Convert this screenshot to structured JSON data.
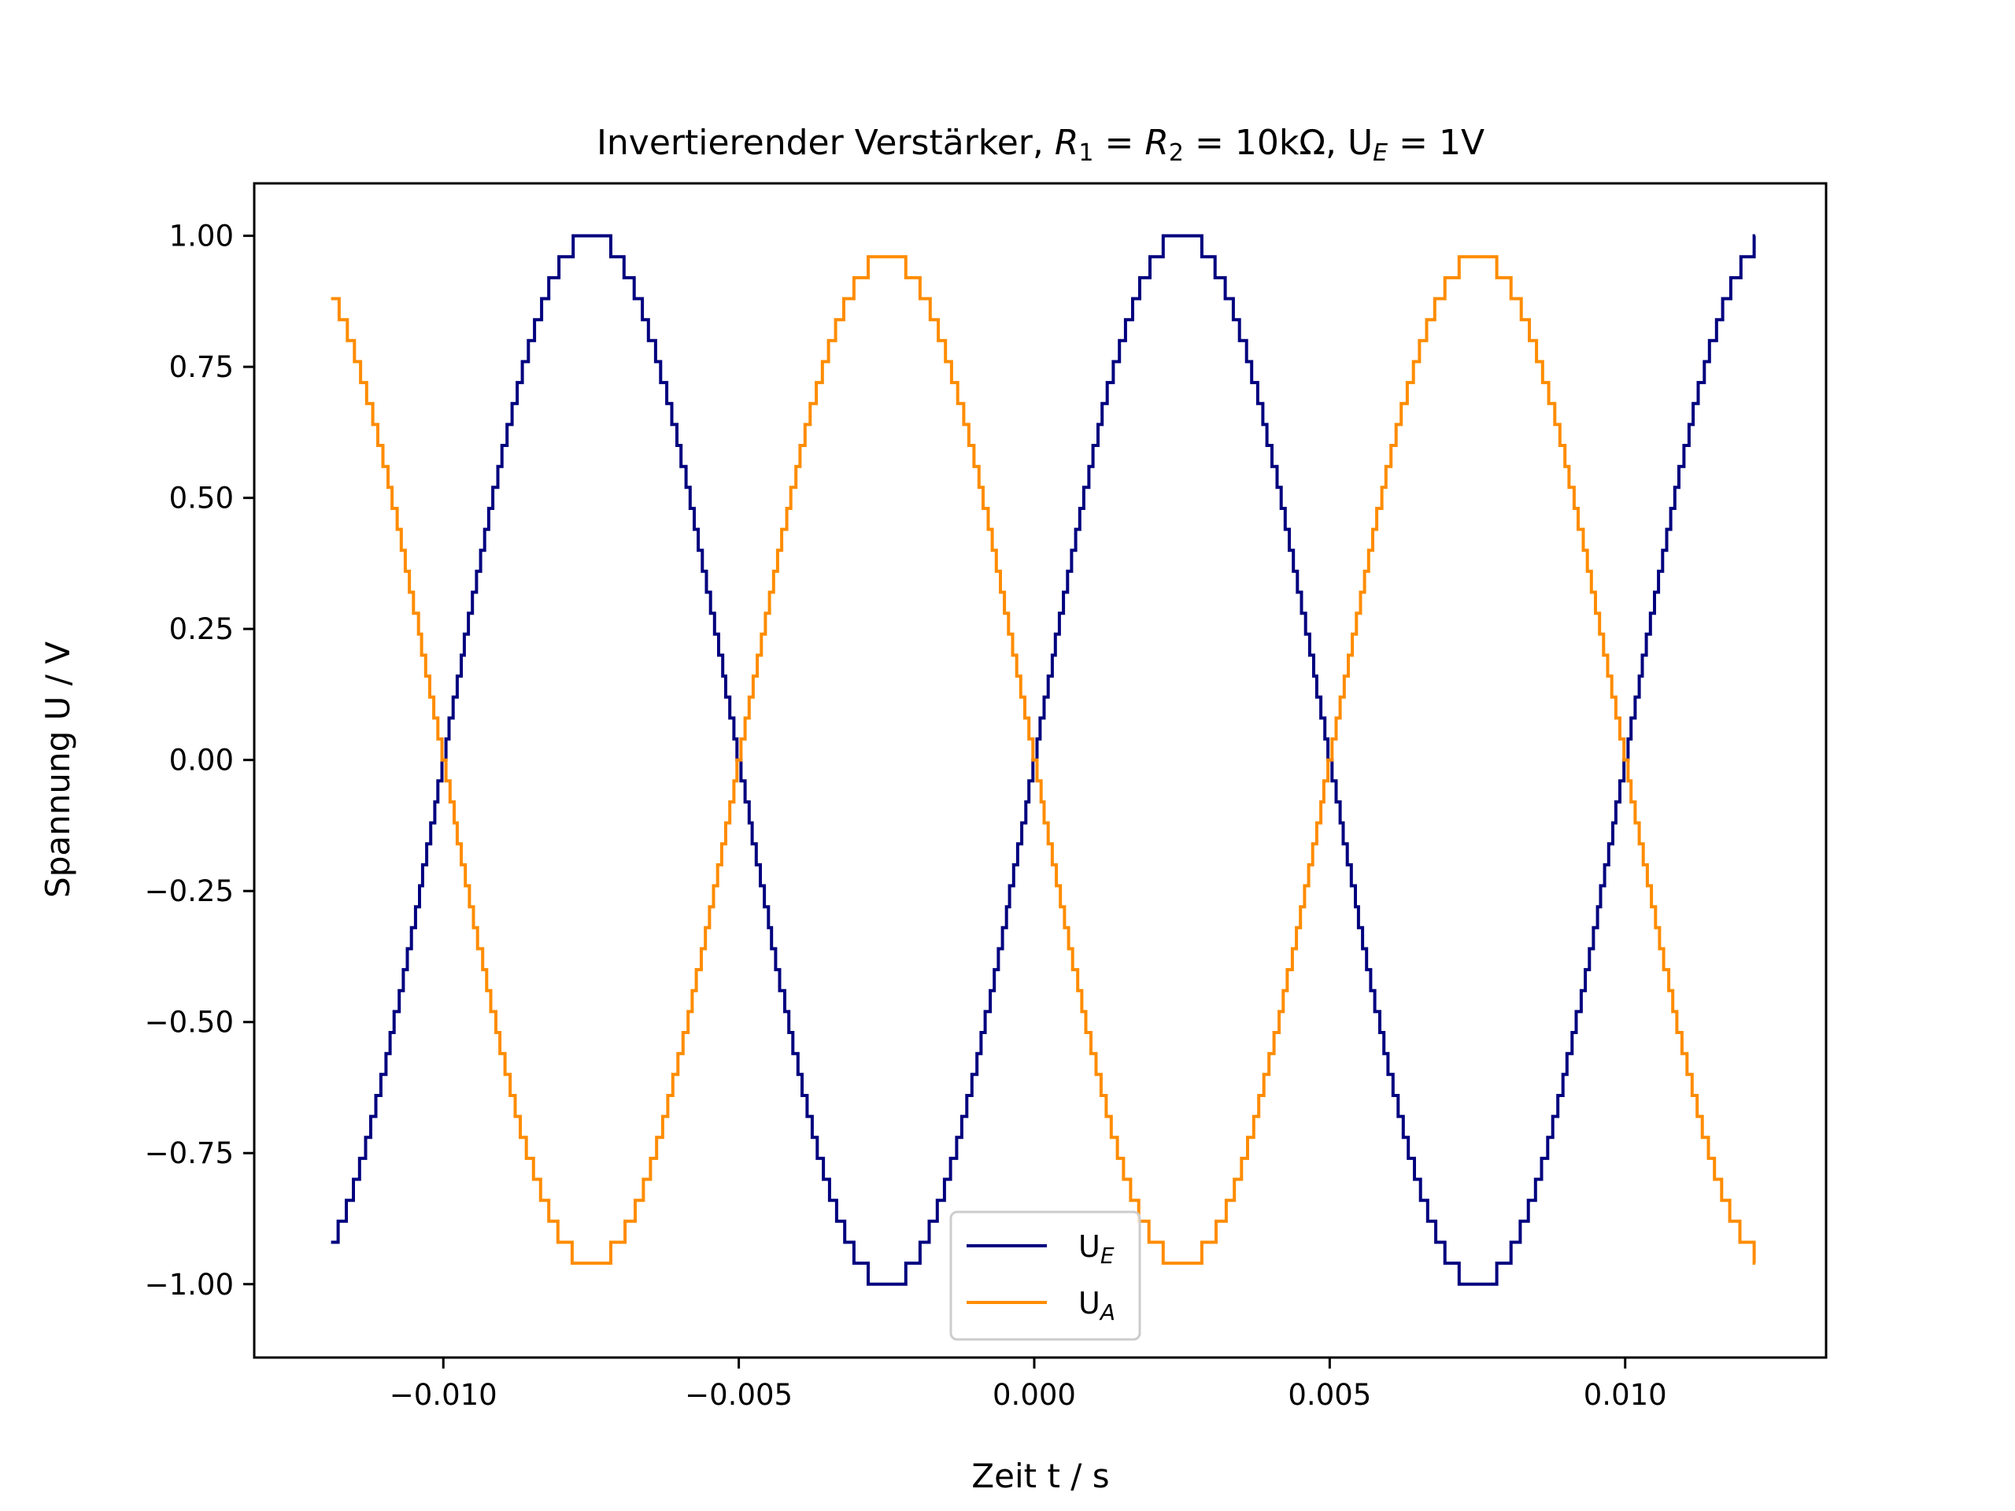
{
  "chart_data": {
    "type": "line",
    "title": "Invertierender Verstärker, R₁ = R₂ = 10kΩ, Uᴇ = 1V",
    "title_parts": {
      "prefix": "Invertierender Verstärker, ",
      "r_sym": "R",
      "r1_sub": "1",
      "r2_sub": "2",
      "eq": " = ",
      "value": "10kΩ",
      "sep": ", ",
      "ue": "U",
      "ue_sub": "E",
      "ue_value": " = 1V"
    },
    "xlabel": "Zeit t / s",
    "ylabel": "Spannung U / V",
    "xlim": [
      -0.0132,
      0.0134
    ],
    "ylim": [
      -1.14,
      1.1
    ],
    "xticks": [
      -0.01,
      -0.005,
      0.0,
      0.005,
      0.01
    ],
    "xtick_labels": [
      "−0.010",
      "−0.005",
      "0.000",
      "0.005",
      "0.010"
    ],
    "yticks": [
      1.0,
      0.75,
      0.5,
      0.25,
      0.0,
      -0.25,
      -0.5,
      -0.75,
      -1.0
    ],
    "ytick_labels": [
      "1.00",
      "0.75",
      "0.50",
      "0.25",
      "0.00",
      "−0.25",
      "−0.50",
      "−0.75",
      "−1.00"
    ],
    "grid": false,
    "legend_position": "bottom-center",
    "period": 0.01,
    "x_start": -0.0119,
    "x_end": 0.0122,
    "quantization_step": 0.04,
    "series": [
      {
        "name": "U",
        "sub": "E",
        "color": "#00007f",
        "amplitude": 1.0,
        "phase_sign": 1
      },
      {
        "name": "U",
        "sub": "A",
        "color": "#ff8c00",
        "amplitude": 0.96,
        "phase_sign": -1
      }
    ]
  }
}
